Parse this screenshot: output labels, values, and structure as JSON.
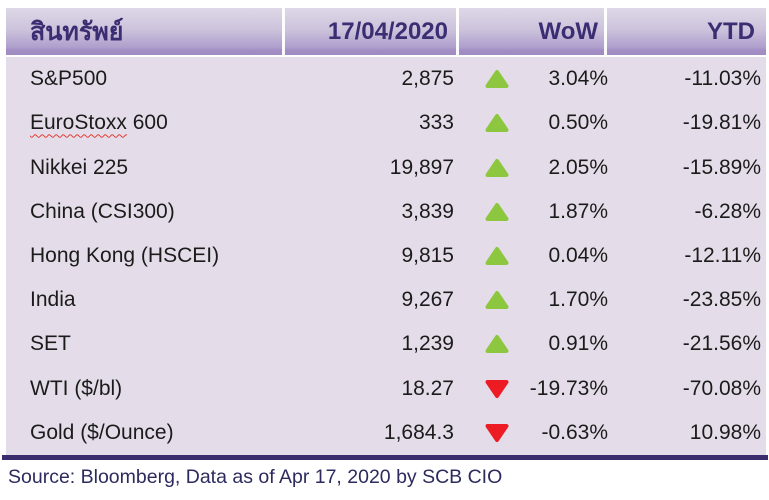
{
  "header": {
    "asset_label": "สินทรัพย์",
    "date_label": "17/04/2020",
    "wow_label": "WoW",
    "ytd_label": "YTD"
  },
  "chart_data": {
    "type": "table",
    "title": "Asset performance as of 17/04/2020",
    "columns": [
      "สินทรัพย์",
      "17/04/2020",
      "WoW",
      "YTD"
    ],
    "rows": [
      {
        "asset": "S&P500",
        "value": "2,875",
        "direction": "up",
        "wow": "3.04%",
        "ytd": "-11.03%"
      },
      {
        "asset": "EuroStoxx 600",
        "value": "333",
        "direction": "up",
        "wow": "0.50%",
        "ytd": "-19.81%",
        "wavy_prefix": "EuroStoxx"
      },
      {
        "asset": "Nikkei 225",
        "value": "19,897",
        "direction": "up",
        "wow": "2.05%",
        "ytd": "-15.89%"
      },
      {
        "asset": "China (CSI300)",
        "value": "3,839",
        "direction": "up",
        "wow": "1.87%",
        "ytd": "-6.28%"
      },
      {
        "asset": "Hong Kong (HSCEI)",
        "value": "9,815",
        "direction": "up",
        "wow": "0.04%",
        "ytd": "-12.11%"
      },
      {
        "asset": "India",
        "value": "9,267",
        "direction": "up",
        "wow": "1.70%",
        "ytd": "-23.85%"
      },
      {
        "asset": "SET",
        "value": "1,239",
        "direction": "up",
        "wow": "0.91%",
        "ytd": "-21.56%"
      },
      {
        "asset": "WTI ($/bl)",
        "value": "18.27",
        "direction": "down",
        "wow": "-19.73%",
        "ytd": "-70.08%"
      },
      {
        "asset": "Gold ($/Ounce)",
        "value": "1,684.3",
        "direction": "down",
        "wow": "-0.63%",
        "ytd": "10.98%"
      }
    ]
  },
  "footer": {
    "source": "Source: Bloomberg, Data as of Apr 17, 2020 by SCB CIO"
  },
  "colors": {
    "up": "#8dc63f",
    "down": "#ed1c24",
    "header_text": "#3b2d72",
    "body_bg": "#e4dde9",
    "rule": "#3a2d6e",
    "source_text": "#2d2a5e"
  }
}
